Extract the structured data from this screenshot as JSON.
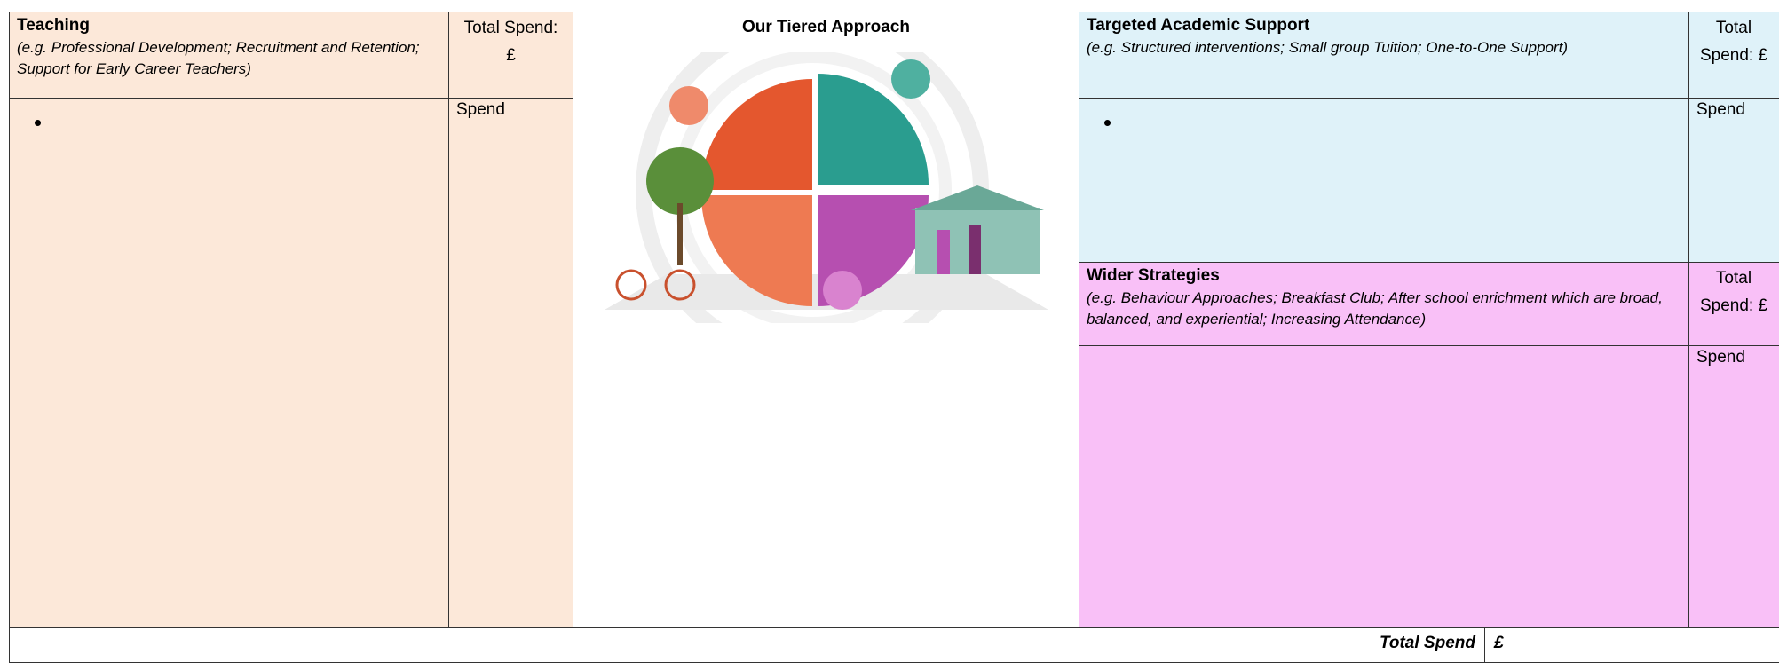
{
  "teaching": {
    "title": "Teaching",
    "subtitle": "(e.g. Professional Development; Recruitment and Retention; Support for Early Career Teachers)",
    "total": "Total Spend: £",
    "spend": "Spend"
  },
  "approach": {
    "title": "Our Tiered Approach"
  },
  "targeted": {
    "title": "Targeted Academic Support",
    "subtitle": "(e.g. Structured interventions; Small group Tuition; One-to-One Support)",
    "total": "Total Spend: £",
    "spend": "Spend"
  },
  "wider": {
    "title": "Wider Strategies",
    "subtitle": "(e.g. Behaviour Approaches; Breakfast Club; After school enrichment which are broad, balanced, and experiential; Increasing Attendance)",
    "total": "Total Spend: £",
    "spend": "Spend"
  },
  "footer": {
    "label": "Total Spend",
    "value": "£"
  }
}
